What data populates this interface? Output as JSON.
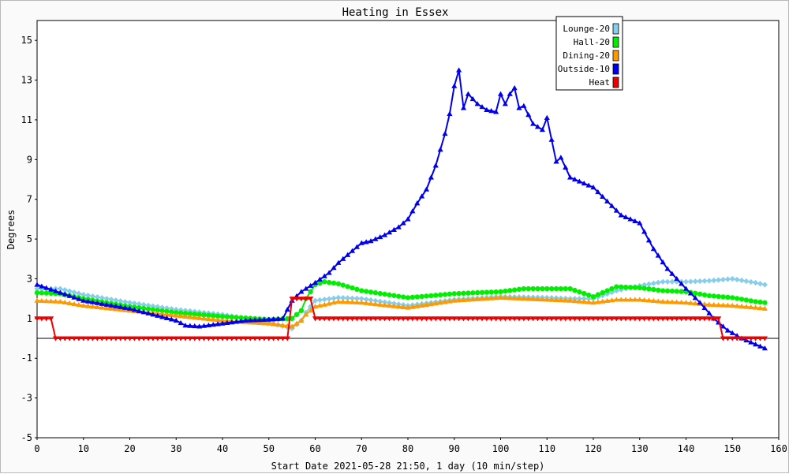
{
  "chart_data": {
    "type": "line",
    "title": "Heating in Essex",
    "xlabel": "Start Date 2021-05-28 21:50, 1 day (10 min/step)",
    "ylabel": "Degrees",
    "xlim": [
      0,
      160
    ],
    "ylim": [
      -5,
      16
    ],
    "x_ticks": [
      0,
      10,
      20,
      30,
      40,
      50,
      60,
      70,
      80,
      90,
      100,
      110,
      120,
      130,
      140,
      150,
      160
    ],
    "y_ticks": [
      -5,
      -3,
      -1,
      1,
      3,
      5,
      7,
      9,
      11,
      13,
      15
    ],
    "grid": true,
    "legend_position": "top-right",
    "zero_line": true,
    "series": [
      {
        "name": "Lounge-20",
        "color": "#87ceeb",
        "marker": "diamond",
        "points": [
          [
            0,
            2.5
          ],
          [
            5,
            2.5
          ],
          [
            10,
            2.2
          ],
          [
            20,
            1.8
          ],
          [
            30,
            1.45
          ],
          [
            40,
            1.2
          ],
          [
            50,
            0.8
          ],
          [
            55,
            0.5
          ],
          [
            57,
            0.9
          ],
          [
            58,
            1.3
          ],
          [
            60,
            1.9
          ],
          [
            65,
            2.05
          ],
          [
            70,
            2.0
          ],
          [
            80,
            1.65
          ],
          [
            90,
            1.95
          ],
          [
            100,
            2.1
          ],
          [
            110,
            2.05
          ],
          [
            115,
            2.0
          ],
          [
            120,
            2.0
          ],
          [
            125,
            2.4
          ],
          [
            130,
            2.65
          ],
          [
            135,
            2.85
          ],
          [
            140,
            2.85
          ],
          [
            145,
            2.9
          ],
          [
            150,
            3.0
          ],
          [
            155,
            2.8
          ],
          [
            157,
            2.7
          ]
        ]
      },
      {
        "name": "Hall-20",
        "color": "#00ee00",
        "marker": "circle",
        "points": [
          [
            0,
            2.3
          ],
          [
            5,
            2.25
          ],
          [
            10,
            2.0
          ],
          [
            20,
            1.6
          ],
          [
            30,
            1.3
          ],
          [
            40,
            1.1
          ],
          [
            50,
            0.95
          ],
          [
            55,
            1.0
          ],
          [
            57,
            1.4
          ],
          [
            58,
            2.0
          ],
          [
            60,
            2.7
          ],
          [
            62,
            2.85
          ],
          [
            65,
            2.75
          ],
          [
            70,
            2.4
          ],
          [
            80,
            2.05
          ],
          [
            90,
            2.25
          ],
          [
            100,
            2.35
          ],
          [
            105,
            2.5
          ],
          [
            110,
            2.5
          ],
          [
            115,
            2.5
          ],
          [
            120,
            2.1
          ],
          [
            125,
            2.6
          ],
          [
            130,
            2.55
          ],
          [
            135,
            2.4
          ],
          [
            140,
            2.35
          ],
          [
            145,
            2.15
          ],
          [
            150,
            2.05
          ],
          [
            155,
            1.85
          ],
          [
            157,
            1.8
          ]
        ]
      },
      {
        "name": "Dining-20",
        "color": "#ff9900",
        "marker": "triangle-up",
        "points": [
          [
            0,
            1.9
          ],
          [
            5,
            1.85
          ],
          [
            10,
            1.65
          ],
          [
            20,
            1.4
          ],
          [
            30,
            1.15
          ],
          [
            40,
            0.9
          ],
          [
            50,
            0.75
          ],
          [
            55,
            0.6
          ],
          [
            57,
            0.9
          ],
          [
            58,
            1.2
          ],
          [
            60,
            1.6
          ],
          [
            65,
            1.85
          ],
          [
            70,
            1.8
          ],
          [
            80,
            1.55
          ],
          [
            90,
            1.9
          ],
          [
            100,
            2.05
          ],
          [
            110,
            1.95
          ],
          [
            115,
            1.9
          ],
          [
            120,
            1.8
          ],
          [
            125,
            1.95
          ],
          [
            130,
            1.95
          ],
          [
            135,
            1.85
          ],
          [
            140,
            1.8
          ],
          [
            145,
            1.7
          ],
          [
            150,
            1.65
          ],
          [
            155,
            1.55
          ],
          [
            157,
            1.5
          ]
        ]
      },
      {
        "name": "Outside-10",
        "color": "#0000ee",
        "marker": "triangle-up",
        "points": [
          [
            0,
            2.7
          ],
          [
            5,
            2.3
          ],
          [
            10,
            1.9
          ],
          [
            20,
            1.5
          ],
          [
            30,
            0.9
          ],
          [
            32,
            0.65
          ],
          [
            35,
            0.6
          ],
          [
            40,
            0.75
          ],
          [
            45,
            0.9
          ],
          [
            50,
            0.95
          ],
          [
            53,
            1.0
          ],
          [
            55,
            1.9
          ],
          [
            57,
            2.35
          ],
          [
            60,
            2.8
          ],
          [
            63,
            3.3
          ],
          [
            65,
            3.8
          ],
          [
            70,
            4.8
          ],
          [
            72,
            4.9
          ],
          [
            75,
            5.2
          ],
          [
            78,
            5.6
          ],
          [
            80,
            6.0
          ],
          [
            82,
            6.8
          ],
          [
            84,
            7.5
          ],
          [
            86,
            8.7
          ],
          [
            88,
            10.3
          ],
          [
            89,
            11.3
          ],
          [
            90,
            12.7
          ],
          [
            91,
            13.5
          ],
          [
            92,
            11.6
          ],
          [
            93,
            12.3
          ],
          [
            95,
            11.8
          ],
          [
            97,
            11.5
          ],
          [
            99,
            11.4
          ],
          [
            100,
            12.3
          ],
          [
            101,
            11.8
          ],
          [
            102,
            12.3
          ],
          [
            103,
            12.6
          ],
          [
            104,
            11.6
          ],
          [
            105,
            11.7
          ],
          [
            107,
            10.8
          ],
          [
            109,
            10.5
          ],
          [
            110,
            11.1
          ],
          [
            112,
            8.9
          ],
          [
            113,
            9.1
          ],
          [
            115,
            8.1
          ],
          [
            117,
            7.9
          ],
          [
            120,
            7.6
          ],
          [
            123,
            6.9
          ],
          [
            126,
            6.2
          ],
          [
            130,
            5.8
          ],
          [
            133,
            4.5
          ],
          [
            136,
            3.5
          ],
          [
            140,
            2.5
          ],
          [
            143,
            1.8
          ],
          [
            146,
            1.0
          ],
          [
            149,
            0.4
          ],
          [
            152,
            0.0
          ],
          [
            155,
            -0.3
          ],
          [
            157,
            -0.5
          ]
        ]
      },
      {
        "name": "Heat",
        "color": "#ee0000",
        "marker": "triangle-down",
        "points": [
          [
            0,
            1.0
          ],
          [
            3,
            1.0
          ],
          [
            4,
            0.0
          ],
          [
            54,
            0.0
          ],
          [
            55,
            2.0
          ],
          [
            59,
            2.0
          ],
          [
            60,
            1.0
          ],
          [
            147,
            1.0
          ],
          [
            148,
            0.0
          ],
          [
            157,
            0.0
          ]
        ]
      }
    ]
  }
}
